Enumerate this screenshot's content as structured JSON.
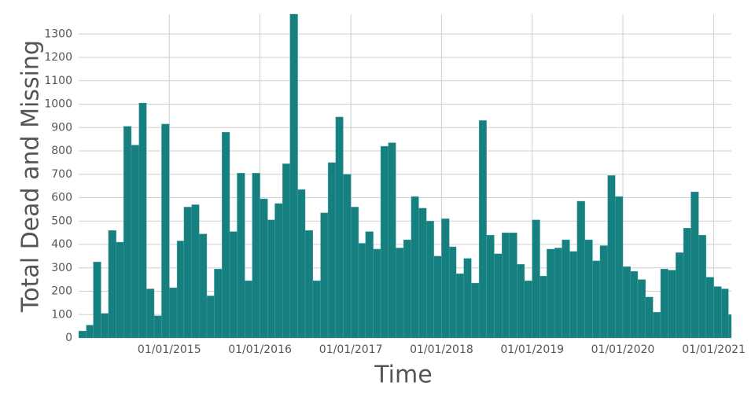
{
  "chart_data": {
    "type": "histogram",
    "xlabel": "Time",
    "ylabel": "Total Dead and Missing",
    "color": "#167f80",
    "grid": true,
    "bins": [
      "2014-01-01",
      "2014-02-01",
      "2014-03-01",
      "2014-04-01",
      "2014-05-01",
      "2014-06-01",
      "2014-07-01",
      "2014-08-01",
      "2014-09-01",
      "2014-10-01",
      "2014-11-01",
      "2014-12-01",
      "2015-01-01",
      "2015-02-01",
      "2015-03-01",
      "2015-04-01",
      "2015-05-01",
      "2015-06-01",
      "2015-07-01",
      "2015-08-01",
      "2015-09-01",
      "2015-10-01",
      "2015-11-01",
      "2015-12-01",
      "2016-01-01",
      "2016-02-01",
      "2016-03-01",
      "2016-04-01",
      "2016-05-01",
      "2016-06-01",
      "2016-07-01",
      "2016-08-01",
      "2016-09-01",
      "2016-10-01",
      "2016-11-01",
      "2016-12-01",
      "2017-01-01",
      "2017-02-01",
      "2017-03-01",
      "2017-04-01",
      "2017-05-01",
      "2017-06-01",
      "2017-07-01",
      "2017-08-01",
      "2017-09-01",
      "2017-10-01",
      "2017-11-01",
      "2017-12-01",
      "2018-01-01",
      "2018-02-01",
      "2018-03-01",
      "2018-04-01",
      "2018-05-01",
      "2018-06-01",
      "2018-07-01",
      "2018-08-01",
      "2018-09-01",
      "2018-10-01",
      "2018-11-01",
      "2018-12-01",
      "2019-01-01",
      "2019-02-01",
      "2019-03-01",
      "2019-04-01",
      "2019-05-01",
      "2019-06-01",
      "2019-07-01",
      "2019-08-01",
      "2019-09-01",
      "2019-10-01",
      "2019-11-01",
      "2019-12-01",
      "2020-01-01",
      "2020-02-01",
      "2020-03-01",
      "2020-04-01",
      "2020-05-01",
      "2020-06-01",
      "2020-07-01",
      "2020-08-01",
      "2020-09-01",
      "2020-10-01",
      "2020-11-01",
      "2020-12-01",
      "2021-01-01",
      "2021-02-01",
      "2021-03-01",
      "2021-04-01"
    ],
    "values": [
      30,
      55,
      325,
      105,
      460,
      410,
      905,
      825,
      1005,
      210,
      95,
      915,
      215,
      415,
      560,
      570,
      445,
      180,
      295,
      880,
      455,
      705,
      245,
      705,
      595,
      505,
      575,
      745,
      1385,
      635,
      460,
      245,
      535,
      750,
      945,
      700,
      560,
      405,
      455,
      380,
      820,
      835,
      385,
      420,
      605,
      555,
      500,
      350,
      510,
      390,
      275,
      340,
      235,
      930,
      440,
      360,
      450,
      450,
      315,
      245,
      505,
      265,
      380,
      385,
      420,
      370,
      585,
      420,
      330,
      395,
      695,
      605,
      305,
      285,
      250,
      175,
      110,
      295,
      290,
      365,
      470,
      625,
      440,
      260,
      220,
      210,
      100
    ],
    "xlim": [
      "2014-01-01",
      "2021-03-13"
    ],
    "xticks": [
      {
        "value": "2015-01-01",
        "label": "01/01/2015"
      },
      {
        "value": "2016-01-01",
        "label": "01/01/2016"
      },
      {
        "value": "2017-01-01",
        "label": "01/01/2017"
      },
      {
        "value": "2018-01-01",
        "label": "01/01/2018"
      },
      {
        "value": "2019-01-01",
        "label": "01/01/2019"
      },
      {
        "value": "2020-01-01",
        "label": "01/01/2020"
      },
      {
        "value": "2021-01-01",
        "label": "01/01/2021"
      }
    ],
    "ylim": [
      0,
      1385
    ],
    "yticks": [
      0,
      100,
      200,
      300,
      400,
      500,
      600,
      700,
      800,
      900,
      1000,
      1100,
      1200,
      1300
    ]
  }
}
